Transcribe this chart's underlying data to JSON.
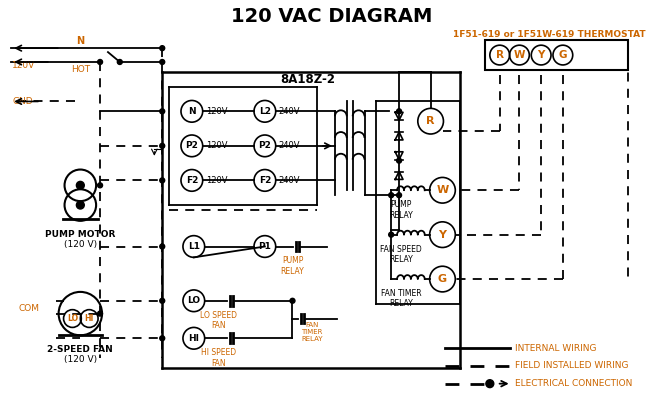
{
  "title": "120 VAC DIAGRAM",
  "title_fontsize": 14,
  "title_color": "#000000",
  "bg_color": "#ffffff",
  "line_color": "#000000",
  "orange_color": "#cc6600",
  "thermostat_label": "1F51-619 or 1F51W-619 THERMOSTAT",
  "timer_label": "8A18Z-2",
  "legend_internal": "INTERNAL WIRING",
  "legend_field": "FIELD INSTALLED WIRING",
  "legend_connection": "ELECTRICAL CONNECTION"
}
